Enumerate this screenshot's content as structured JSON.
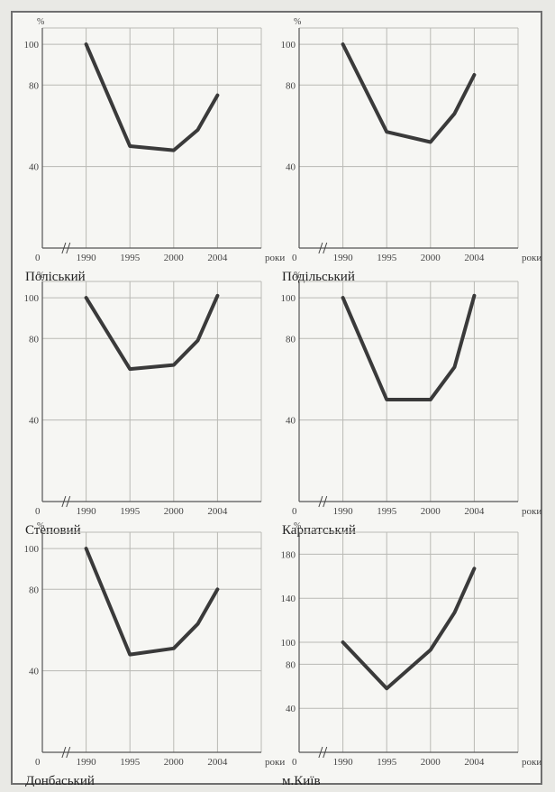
{
  "chart_data": [
    {
      "type": "line",
      "title": "Поліський",
      "unit": "%",
      "xlabel": "роки",
      "origin_label": "0",
      "x_ticks": [
        "1990",
        "1995",
        "2000",
        "2004"
      ],
      "y_ticks": [
        40,
        80,
        100
      ],
      "ylim": [
        0,
        108
      ],
      "x": [
        1990,
        1995,
        2000,
        2002,
        2004
      ],
      "values": [
        100,
        50,
        48,
        58,
        75
      ]
    },
    {
      "type": "line",
      "title": "Подільський",
      "unit": "%",
      "xlabel": "роки",
      "origin_label": "0",
      "x_ticks": [
        "1990",
        "1995",
        "2000",
        "2004"
      ],
      "y_ticks": [
        40,
        80,
        100
      ],
      "ylim": [
        0,
        108
      ],
      "x": [
        1990,
        1995,
        2000,
        2002,
        2004
      ],
      "values": [
        100,
        57,
        52,
        66,
        85
      ]
    },
    {
      "type": "line",
      "title": "Степовий",
      "unit": "%",
      "xlabel": "",
      "origin_label": "0",
      "x_ticks": [
        "1990",
        "1995",
        "2000",
        "2004"
      ],
      "y_ticks": [
        40,
        80,
        100
      ],
      "ylim": [
        0,
        108
      ],
      "x": [
        1990,
        1995,
        2000,
        2002,
        2004
      ],
      "values": [
        100,
        65,
        67,
        79,
        101
      ]
    },
    {
      "type": "line",
      "title": "Карпатський",
      "unit": "%",
      "xlabel": "роки",
      "origin_label": "0",
      "x_ticks": [
        "1990",
        "1995",
        "2000",
        "2004"
      ],
      "y_ticks": [
        40,
        80,
        100
      ],
      "ylim": [
        0,
        108
      ],
      "x": [
        1990,
        1995,
        2000,
        2002,
        2004
      ],
      "values": [
        100,
        50,
        50,
        66,
        101
      ]
    },
    {
      "type": "line",
      "title": "Донбаський",
      "unit": "%",
      "xlabel": "роки",
      "origin_label": "0",
      "x_ticks": [
        "1990",
        "1995",
        "2000",
        "2004"
      ],
      "y_ticks": [
        40,
        80,
        100
      ],
      "ylim": [
        0,
        108
      ],
      "x": [
        1990,
        1995,
        2000,
        2002,
        2004
      ],
      "values": [
        100,
        48,
        51,
        63,
        80
      ]
    },
    {
      "type": "line",
      "title": "м.Київ",
      "unit": "%",
      "xlabel": "роки",
      "origin_label": "0",
      "x_ticks": [
        "1990",
        "1995",
        "2000",
        "2004"
      ],
      "y_ticks": [
        40,
        80,
        100,
        140,
        180
      ],
      "ylim": [
        0,
        200
      ],
      "x": [
        1990,
        1995,
        2000,
        2002,
        2004
      ],
      "values": [
        100,
        58,
        93,
        127,
        167
      ]
    }
  ]
}
